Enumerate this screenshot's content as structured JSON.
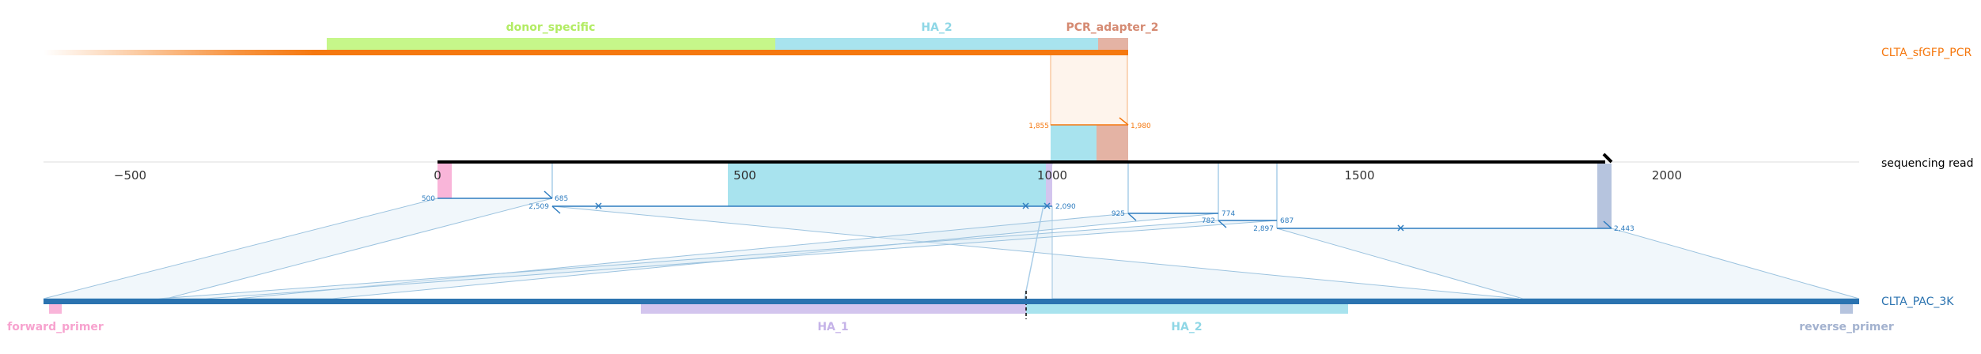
{
  "colors": {
    "pcr_track": "#f5780f",
    "pac_track": "#2b73b0",
    "read_track": "#000000",
    "donor_specific": "#c6f78a",
    "ha_2": "#a8e3ee",
    "pcr_adapter_2": "#e4b3a4",
    "ha_1": "#d3c5ee",
    "forward_primer": "#f9b5d9",
    "reverse_primer": "#b6c4de",
    "alignment_line": "#2f7dc0",
    "pcr_alignment": "#f5780f"
  },
  "tracks": {
    "pcr": {
      "label": "CLTA_sfGFP_PCR"
    },
    "read": {
      "label": "sequencing read"
    },
    "pac": {
      "label": "CLTA_PAC_3K"
    }
  },
  "pcr_features": [
    {
      "name": "donor_specific",
      "color_key": "donor_specific"
    },
    {
      "name": "HA_2",
      "color_key": "ha_2"
    },
    {
      "name": "PCR_adapter_2",
      "color_key": "pcr_adapter_2"
    }
  ],
  "pac_features": [
    {
      "name": "forward_primer",
      "color_key": "forward_primer"
    },
    {
      "name": "HA_1",
      "color_key": "ha_1"
    },
    {
      "name": "HA_2",
      "color_key": "ha_2"
    },
    {
      "name": "reverse_primer",
      "color_key": "reverse_primer"
    }
  ],
  "read_axis": {
    "ticks": [
      "−500",
      "0",
      "500",
      "1000",
      "1500",
      "2000"
    ],
    "tick_values": [
      -500,
      0,
      500,
      1000,
      1500,
      2000
    ],
    "read_start": 0,
    "read_end": 1913
  },
  "pcr_alignment_labels": {
    "start": "1,855",
    "end": "1,980"
  },
  "pac_alignments": [
    {
      "read_start": 0,
      "read_end": 185,
      "ref_start_label": "500",
      "ref_end_label": "685"
    },
    {
      "read_start": 185,
      "read_end": 1000,
      "ref_start_label": "2,509",
      "ref_end_label": "2,090"
    },
    {
      "read_start": 1125,
      "read_end": 1270,
      "ref_start_label": "925",
      "ref_end_label": "774"
    },
    {
      "read_start": 1270,
      "read_end": 1365,
      "ref_start_label": "782",
      "ref_end_label": "687"
    },
    {
      "read_start": 1365,
      "read_end": 1913,
      "ref_start_label": "2,897",
      "ref_end_label": "2,443"
    }
  ]
}
